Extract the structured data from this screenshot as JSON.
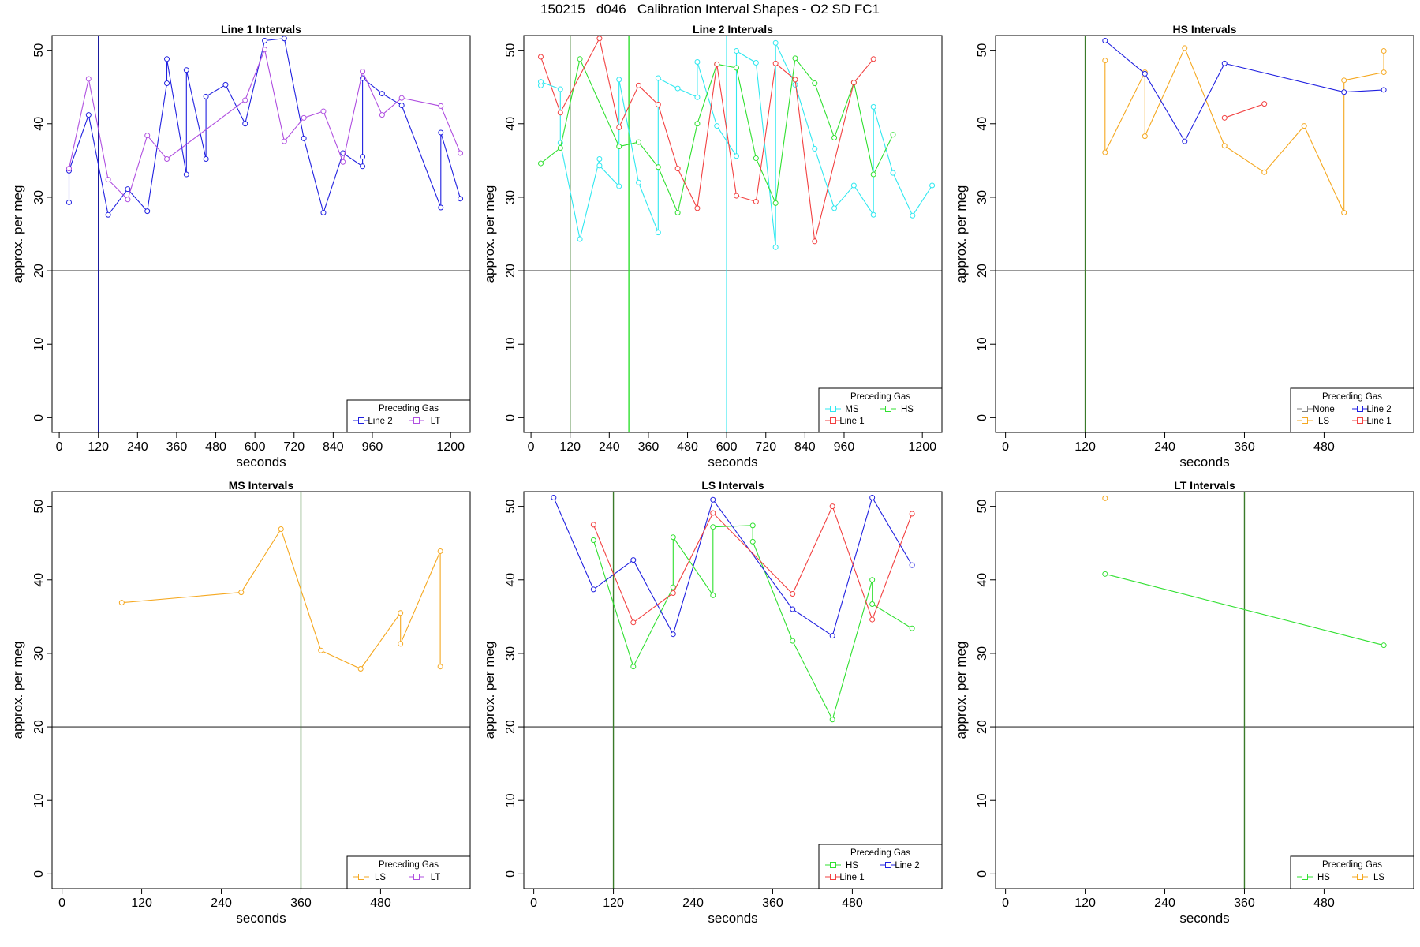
{
  "figure": {
    "title": "150215   d046   Calibration Interval Shapes - O2 SD FC1"
  },
  "colors": {
    "Line 1": "#f24040",
    "Line 2": "#2020e0",
    "LT": "#b050e0",
    "MS": "#30e8f0",
    "HS": "#30e030",
    "LS": "#f5a820",
    "None": "#808080",
    "hline": "#333333",
    "vline_dark": "#3a7a2a"
  },
  "chart_data": [
    {
      "type": "line",
      "title": "Line 1 Intervals",
      "xlabel": "seconds",
      "ylabel": "approx. per meg",
      "xlim": [
        -22,
        1260
      ],
      "ylim": [
        -2,
        52
      ],
      "xticks": [
        0,
        120,
        240,
        360,
        480,
        600,
        720,
        840,
        960,
        1200
      ],
      "yticks": [
        0,
        10,
        20,
        30,
        40,
        50
      ],
      "hline": 20,
      "vlines": [
        {
          "x": 120,
          "color": "#1a1aa0"
        }
      ],
      "legend": {
        "title": "Preceding Gas",
        "position": "bottom-right",
        "items": [
          "Line 2",
          "LT"
        ]
      },
      "series": [
        {
          "name": "Line 2",
          "color": "#2020e0",
          "points": [
            [
              30,
              29.3
            ],
            [
              30,
              33.6
            ],
            [
              90,
              41.2
            ],
            [
              150,
              27.6
            ],
            [
              210,
              31.1
            ],
            [
              270,
              28.1
            ],
            [
              330,
              45.5
            ],
            [
              330,
              48.8
            ],
            [
              390,
              33.1
            ],
            [
              390,
              47.3
            ],
            [
              450,
              35.2
            ],
            [
              450,
              43.7
            ],
            [
              510,
              45.3
            ],
            [
              570,
              40.0
            ],
            [
              630,
              51.3
            ],
            [
              690,
              51.6
            ],
            [
              750,
              38.0
            ],
            [
              810,
              27.9
            ],
            [
              870,
              36.0
            ],
            [
              930,
              34.2
            ],
            [
              930,
              35.5
            ],
            [
              930,
              46.2
            ],
            [
              990,
              44.1
            ],
            [
              1050,
              42.5
            ],
            [
              1170,
              28.6
            ],
            [
              1170,
              38.8
            ],
            [
              1230,
              29.8
            ]
          ]
        },
        {
          "name": "LT",
          "color": "#b050e0",
          "points": [
            [
              30,
              33.9
            ],
            [
              90,
              46.1
            ],
            [
              150,
              32.4
            ],
            [
              210,
              29.7
            ],
            [
              270,
              38.4
            ],
            [
              330,
              35.2
            ],
            [
              570,
              43.2
            ],
            [
              630,
              50.1
            ],
            [
              690,
              37.6
            ],
            [
              750,
              40.8
            ],
            [
              810,
              41.7
            ],
            [
              870,
              34.8
            ],
            [
              930,
              47.1
            ],
            [
              990,
              41.2
            ],
            [
              1050,
              43.5
            ],
            [
              1170,
              42.4
            ],
            [
              1230,
              36.0
            ]
          ]
        }
      ]
    },
    {
      "type": "line",
      "title": "Line 2 Intervals",
      "xlabel": "seconds",
      "ylabel": "approx. per meg",
      "xlim": [
        -22,
        1260
      ],
      "ylim": [
        -2,
        52
      ],
      "xticks": [
        0,
        120,
        240,
        360,
        480,
        600,
        720,
        840,
        960,
        1200
      ],
      "yticks": [
        0,
        10,
        20,
        30,
        40,
        50
      ],
      "hline": 20,
      "vlines": [
        {
          "x": 120,
          "color": "#3a7a2a"
        },
        {
          "x": 300,
          "color": "#30e030"
        },
        {
          "x": 600,
          "color": "#30e8f0"
        }
      ],
      "legend": {
        "title": "Preceding Gas",
        "position": "bottom-right",
        "items": [
          "MS",
          "HS",
          "Line 1"
        ]
      },
      "series": [
        {
          "name": "MS",
          "color": "#30e8f0",
          "points": [
            [
              30,
              45.2
            ],
            [
              30,
              45.7
            ],
            [
              90,
              44.7
            ],
            [
              90,
              37.4
            ],
            [
              150,
              24.3
            ],
            [
              210,
              35.2
            ],
            [
              210,
              34.3
            ],
            [
              270,
              31.5
            ],
            [
              270,
              46.0
            ],
            [
              330,
              32.0
            ],
            [
              390,
              25.2
            ],
            [
              390,
              46.2
            ],
            [
              450,
              44.8
            ],
            [
              510,
              43.6
            ],
            [
              510,
              48.4
            ],
            [
              570,
              39.7
            ],
            [
              630,
              35.6
            ],
            [
              630,
              49.9
            ],
            [
              690,
              48.3
            ],
            [
              750,
              23.2
            ],
            [
              750,
              51.0
            ],
            [
              810,
              45.3
            ],
            [
              870,
              36.6
            ],
            [
              930,
              28.5
            ],
            [
              990,
              31.6
            ],
            [
              1050,
              27.6
            ],
            [
              1050,
              42.3
            ],
            [
              1110,
              33.3
            ],
            [
              1170,
              27.5
            ],
            [
              1230,
              31.6
            ]
          ]
        },
        {
          "name": "HS",
          "color": "#30e030",
          "points": [
            [
              30,
              34.6
            ],
            [
              90,
              36.7
            ],
            [
              150,
              48.8
            ],
            [
              270,
              36.9
            ],
            [
              330,
              37.5
            ],
            [
              390,
              34.1
            ],
            [
              450,
              27.9
            ],
            [
              510,
              40.0
            ],
            [
              570,
              48.1
            ],
            [
              630,
              47.6
            ],
            [
              690,
              35.3
            ],
            [
              750,
              29.2
            ],
            [
              810,
              48.9
            ],
            [
              870,
              45.5
            ],
            [
              930,
              38.1
            ],
            [
              990,
              45.6
            ],
            [
              1050,
              33.1
            ],
            [
              1110,
              38.5
            ]
          ]
        },
        {
          "name": "Line 1",
          "color": "#f24040",
          "points": [
            [
              30,
              49.1
            ],
            [
              90,
              41.5
            ],
            [
              210,
              51.6
            ],
            [
              270,
              39.5
            ],
            [
              330,
              45.2
            ],
            [
              390,
              42.6
            ],
            [
              450,
              33.9
            ],
            [
              510,
              28.5
            ],
            [
              570,
              48.1
            ],
            [
              630,
              30.2
            ],
            [
              690,
              29.4
            ],
            [
              750,
              48.2
            ],
            [
              810,
              46.0
            ],
            [
              870,
              24.0
            ],
            [
              990,
              45.6
            ],
            [
              1050,
              48.8
            ]
          ]
        }
      ]
    },
    {
      "type": "line",
      "title": "HS Intervals",
      "xlabel": "seconds",
      "ylabel": "approx. per meg",
      "xlim": [
        -15,
        615
      ],
      "ylim": [
        -2,
        52
      ],
      "xticks": [
        0,
        120,
        240,
        360,
        480
      ],
      "yticks": [
        0,
        10,
        20,
        30,
        40,
        50
      ],
      "hline": 20,
      "vlines": [
        {
          "x": 120,
          "color": "#3a7a2a"
        }
      ],
      "legend": {
        "title": "Preceding Gas",
        "position": "bottom-right",
        "items": [
          "None",
          "Line 2",
          "LS",
          "Line 1"
        ]
      },
      "series": [
        {
          "name": "LS",
          "color": "#f5a820",
          "points": [
            [
              150,
              48.6
            ],
            [
              150,
              36.1
            ],
            [
              210,
              47.0
            ],
            [
              210,
              38.3
            ],
            [
              270,
              50.3
            ],
            [
              330,
              37.0
            ],
            [
              390,
              33.4
            ],
            [
              450,
              39.7
            ],
            [
              510,
              27.9
            ],
            [
              510,
              45.9
            ],
            [
              570,
              47.0
            ],
            [
              570,
              49.9
            ]
          ]
        },
        {
          "name": "Line 2",
          "color": "#2020e0",
          "points": [
            [
              150,
              51.3
            ],
            [
              210,
              46.8
            ],
            [
              270,
              37.6
            ],
            [
              330,
              48.2
            ],
            [
              510,
              44.3
            ],
            [
              570,
              44.6
            ]
          ]
        },
        {
          "name": "Line 1",
          "color": "#f24040",
          "points": [
            [
              330,
              40.8
            ],
            [
              390,
              42.7
            ]
          ]
        }
      ]
    },
    {
      "type": "line",
      "title": "MS Intervals",
      "xlabel": "seconds",
      "ylabel": "approx. per meg",
      "xlim": [
        -15,
        615
      ],
      "ylim": [
        -2,
        52
      ],
      "xticks": [
        0,
        120,
        240,
        360,
        480
      ],
      "yticks": [
        0,
        10,
        20,
        30,
        40,
        50
      ],
      "hline": 20,
      "vlines": [
        {
          "x": 360,
          "color": "#3a7a2a"
        }
      ],
      "legend": {
        "title": "Preceding Gas",
        "position": "bottom-right",
        "items": [
          "LS",
          "LT"
        ]
      },
      "series": [
        {
          "name": "LS",
          "color": "#f5a820",
          "points": [
            [
              90,
              36.9
            ],
            [
              270,
              38.3
            ],
            [
              330,
              46.9
            ],
            [
              390,
              30.4
            ],
            [
              450,
              27.9
            ],
            [
              510,
              35.5
            ],
            [
              510,
              31.3
            ],
            [
              570,
              43.9
            ],
            [
              570,
              28.2
            ]
          ]
        }
      ]
    },
    {
      "type": "line",
      "title": "LS Intervals",
      "xlabel": "seconds",
      "ylabel": "approx. per meg",
      "xlim": [
        -15,
        615
      ],
      "ylim": [
        -2,
        52
      ],
      "xticks": [
        0,
        120,
        240,
        360,
        480
      ],
      "yticks": [
        0,
        10,
        20,
        30,
        40,
        50
      ],
      "hline": 20,
      "vlines": [
        {
          "x": 120,
          "color": "#3a7a2a"
        }
      ],
      "legend": {
        "title": "Preceding Gas",
        "position": "bottom-right",
        "items": [
          "HS",
          "Line 2",
          "Line 1"
        ]
      },
      "series": [
        {
          "name": "HS",
          "color": "#30e030",
          "points": [
            [
              90,
              45.4
            ],
            [
              150,
              28.2
            ],
            [
              210,
              39.0
            ],
            [
              210,
              45.8
            ],
            [
              270,
              37.9
            ],
            [
              270,
              47.2
            ],
            [
              330,
              47.4
            ],
            [
              330,
              45.2
            ],
            [
              390,
              31.7
            ],
            [
              450,
              21.0
            ],
            [
              510,
              40.0
            ],
            [
              510,
              36.7
            ],
            [
              570,
              33.4
            ]
          ]
        },
        {
          "name": "Line 2",
          "color": "#2020e0",
          "points": [
            [
              30,
              51.2
            ],
            [
              90,
              38.7
            ],
            [
              150,
              42.7
            ],
            [
              210,
              32.6
            ],
            [
              270,
              50.9
            ],
            [
              390,
              36.0
            ],
            [
              450,
              32.4
            ],
            [
              510,
              51.2
            ],
            [
              570,
              42.0
            ]
          ]
        },
        {
          "name": "Line 1",
          "color": "#f24040",
          "points": [
            [
              90,
              47.5
            ],
            [
              150,
              34.2
            ],
            [
              210,
              38.2
            ],
            [
              270,
              49.1
            ],
            [
              390,
              38.1
            ],
            [
              450,
              50.0
            ],
            [
              510,
              34.6
            ],
            [
              570,
              49.0
            ]
          ]
        }
      ]
    },
    {
      "type": "line",
      "title": "LT Intervals",
      "xlabel": "seconds",
      "ylabel": "approx. per meg",
      "xlim": [
        -15,
        615
      ],
      "ylim": [
        -2,
        52
      ],
      "xticks": [
        0,
        120,
        240,
        360,
        480
      ],
      "yticks": [
        0,
        10,
        20,
        30,
        40,
        50
      ],
      "hline": 20,
      "vlines": [
        {
          "x": 360,
          "color": "#3a7a2a"
        }
      ],
      "legend": {
        "title": "Preceding Gas",
        "position": "bottom-right",
        "items": [
          "HS",
          "LS"
        ]
      },
      "series": [
        {
          "name": "HS",
          "color": "#30e030",
          "points": [
            [
              150,
              40.8
            ],
            [
              570,
              31.1
            ]
          ]
        },
        {
          "name": "LS",
          "color": "#f5a820",
          "points": [
            [
              150,
              51.1
            ]
          ]
        }
      ]
    }
  ]
}
